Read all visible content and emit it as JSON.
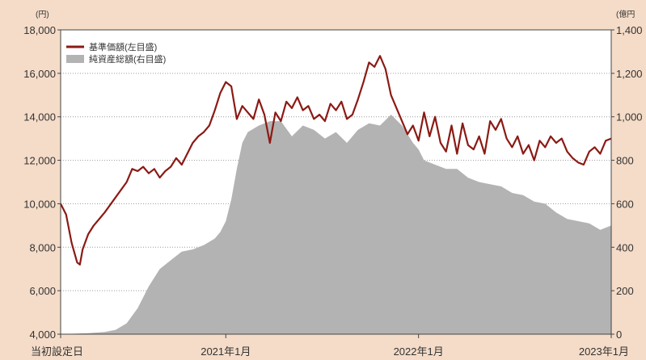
{
  "chart_data": {
    "type": "line",
    "left_unit": "(円)",
    "right_unit": "(億円",
    "legend": [
      {
        "label": "基準価額(左目盛)",
        "kind": "line",
        "color": "#8b1a14"
      },
      {
        "label": "純資産総額(右目盛)",
        "kind": "area",
        "color": "#b3b3b3"
      }
    ],
    "y_left": {
      "range": [
        4000,
        18000
      ],
      "ticks": [
        "4,000",
        "6,000",
        "8,000",
        "10,000",
        "12,000",
        "14,000",
        "16,000",
        "18,000"
      ],
      "tick_values": [
        4000,
        6000,
        8000,
        10000,
        12000,
        14000,
        16000,
        18000
      ]
    },
    "y_right": {
      "range": [
        0,
        1400
      ],
      "ticks": [
        "0",
        "200",
        "400",
        "600",
        "800",
        "1,000",
        "1,200",
        "1,400"
      ],
      "tick_values": [
        0,
        200,
        400,
        600,
        800,
        1000,
        1200,
        1400
      ],
      "clipped": true
    },
    "x_axis": {
      "ticks": [
        {
          "label": "当初設定日",
          "at": 0
        },
        {
          "label": "2021年1月",
          "at": 0.3
        },
        {
          "label": "2022年1月",
          "at": 0.65
        },
        {
          "label": "2023年1月",
          "at": 1.0
        }
      ]
    },
    "grid": "horizontal dotted",
    "series": [
      {
        "name": "基準価額(左目盛)",
        "axis": "left",
        "x": [
          0,
          0.01,
          0.02,
          0.03,
          0.035,
          0.04,
          0.05,
          0.06,
          0.08,
          0.1,
          0.12,
          0.13,
          0.14,
          0.15,
          0.16,
          0.17,
          0.18,
          0.19,
          0.2,
          0.21,
          0.22,
          0.23,
          0.24,
          0.25,
          0.26,
          0.27,
          0.28,
          0.29,
          0.3,
          0.31,
          0.32,
          0.33,
          0.34,
          0.35,
          0.36,
          0.37,
          0.38,
          0.39,
          0.4,
          0.41,
          0.42,
          0.43,
          0.44,
          0.45,
          0.46,
          0.47,
          0.48,
          0.49,
          0.5,
          0.51,
          0.52,
          0.53,
          0.54,
          0.55,
          0.56,
          0.57,
          0.58,
          0.59,
          0.6,
          0.61,
          0.62,
          0.63,
          0.64,
          0.65,
          0.66,
          0.67,
          0.68,
          0.69,
          0.7,
          0.71,
          0.72,
          0.73,
          0.74,
          0.75,
          0.76,
          0.77,
          0.78,
          0.79,
          0.8,
          0.81,
          0.82,
          0.83,
          0.84,
          0.85,
          0.86,
          0.87,
          0.88,
          0.89,
          0.9,
          0.91,
          0.92,
          0.93,
          0.94,
          0.95,
          0.96,
          0.97,
          0.98,
          0.99,
          1.0
        ],
        "values": [
          10000,
          9500,
          8200,
          7300,
          7200,
          7900,
          8600,
          9000,
          9600,
          10300,
          11000,
          11600,
          11500,
          11700,
          11400,
          11600,
          11200,
          11500,
          11700,
          12100,
          11800,
          12300,
          12800,
          13100,
          13300,
          13600,
          14300,
          15100,
          15600,
          15400,
          13900,
          14500,
          14200,
          13900,
          14800,
          14100,
          12800,
          14200,
          13800,
          14700,
          14400,
          14900,
          14300,
          14500,
          13900,
          14100,
          13800,
          14600,
          14300,
          14700,
          13900,
          14100,
          14800,
          15600,
          16500,
          16300,
          16800,
          16200,
          15000,
          14400,
          13800,
          13200,
          13600,
          12900,
          14200,
          13100,
          14000,
          12800,
          12400,
          13600,
          12300,
          13700,
          12700,
          12500,
          13100,
          12300,
          13800,
          13400,
          13900,
          13000,
          12600,
          13100,
          12300,
          12700,
          12000,
          12900,
          12600,
          13100,
          12800,
          13000,
          12400,
          12100,
          11900,
          11800,
          12400,
          12600,
          12300,
          12900,
          13000
        ],
        "color": "#8b1a14"
      },
      {
        "name": "純資産総額(右目盛)",
        "axis": "right",
        "x": [
          0,
          0.05,
          0.08,
          0.1,
          0.12,
          0.14,
          0.16,
          0.18,
          0.2,
          0.22,
          0.24,
          0.26,
          0.28,
          0.29,
          0.3,
          0.31,
          0.32,
          0.33,
          0.34,
          0.36,
          0.38,
          0.4,
          0.42,
          0.44,
          0.46,
          0.48,
          0.5,
          0.52,
          0.54,
          0.56,
          0.58,
          0.6,
          0.62,
          0.64,
          0.65,
          0.66,
          0.68,
          0.7,
          0.72,
          0.74,
          0.76,
          0.78,
          0.8,
          0.82,
          0.84,
          0.86,
          0.88,
          0.9,
          0.92,
          0.94,
          0.96,
          0.98,
          1.0
        ],
        "values": [
          0,
          5,
          10,
          20,
          50,
          120,
          220,
          300,
          340,
          380,
          390,
          410,
          440,
          470,
          520,
          620,
          760,
          880,
          930,
          960,
          980,
          980,
          910,
          960,
          940,
          900,
          930,
          880,
          940,
          970,
          960,
          1010,
          960,
          880,
          850,
          800,
          780,
          760,
          760,
          720,
          700,
          690,
          680,
          650,
          640,
          610,
          600,
          560,
          530,
          520,
          510,
          480,
          500
        ],
        "color": "#b3b3b3"
      }
    ]
  }
}
